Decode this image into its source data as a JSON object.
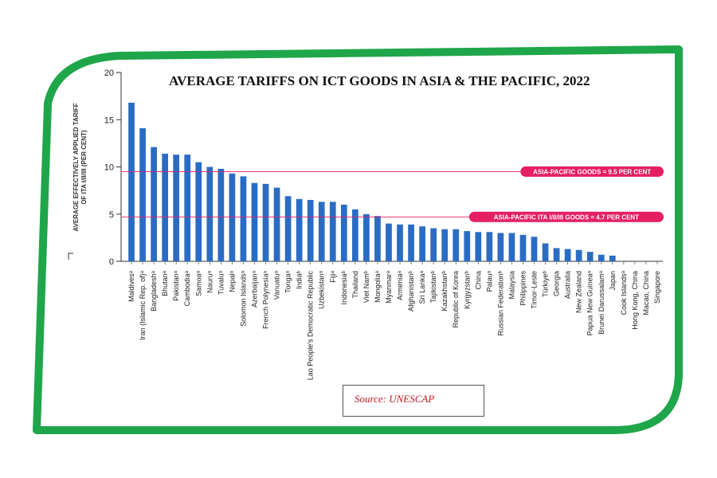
{
  "colors": {
    "frame": "#1fa64a",
    "bar": "#2a6cc4",
    "reference": "#e61e63",
    "axis": "#333333"
  },
  "chart_data": {
    "type": "bar",
    "title": "AVERAGE TARIFFS ON ICT GOODS IN ASIA & THE PACIFIC, 2022",
    "xlabel": "",
    "ylabel": "AVERAGE EFFECTIVELY APPLIED TARIFF OF ITA I/II/III (PER CENT)",
    "ylim": [
      0,
      20
    ],
    "yticks": [
      0,
      5,
      10,
      15,
      20
    ],
    "categories": [
      "Maldivesᵃ",
      "Iran (Islamic Rep. of)ᵃ",
      "Bangladeshᵃ",
      "Bhutanᵃ",
      "Pakistanᵃ",
      "Cambodiaᵃ",
      "Samoaᵃ",
      "Nauruᵃ",
      "Tuvaluᵃ",
      "Nepalᵃ",
      "Solomon Islandsᵃ",
      "Azerbaijanᵃ",
      "French Polynesiaᵃ",
      "Vanuatuᵃ",
      "Tongaᵃ",
      "Indiaᵇ",
      "Lao People's Democratic Republic",
      "Uzbekistanᵃ",
      "Fijiᵃ",
      "Indonesiaᵇ",
      "Thailand",
      "Viet Namᵇ",
      "Mongoliaᵃ",
      "Myanmarᵃ",
      "Armeniaᵃ",
      "Afghanistanᵇ",
      "Sri Lankaᵃ",
      "Tajikistanᵇ",
      "Kazakhstanᵇ",
      "Republic of Korea",
      "Kyrgyzstanᵇ",
      "China",
      "Palauᵃ",
      "Russian Federationᵇ",
      "Malaysia",
      "Philippines",
      "Timor-Leste",
      "Türkiyeᵇ",
      "Georgia",
      "Australia",
      "New Zealand",
      "Papua New Guineaᵃ",
      "Brunei Darussalamᵃ",
      "Japan",
      "Cook Islandsᵃ",
      "Hong Kong, China",
      "Macao, China",
      "Singapore"
    ],
    "values": [
      16.8,
      14.1,
      12.1,
      11.4,
      11.3,
      11.3,
      10.5,
      10.0,
      9.8,
      9.3,
      9.0,
      8.3,
      8.2,
      7.8,
      6.9,
      6.6,
      6.5,
      6.3,
      6.3,
      6.0,
      5.5,
      5.0,
      4.8,
      4.0,
      3.9,
      3.9,
      3.7,
      3.5,
      3.4,
      3.4,
      3.2,
      3.1,
      3.1,
      3.0,
      3.0,
      2.8,
      2.6,
      1.9,
      1.4,
      1.3,
      1.2,
      1.0,
      0.7,
      0.6,
      0,
      0,
      0,
      0
    ],
    "reference_lines": [
      {
        "label": "ASIA-PACIFIC GOODS = 9.5 PER CENT",
        "value": 9.5
      },
      {
        "label": "ASIA-PACIFIC ITA I/II/III GOODS = 4.7 PER CENT",
        "value": 4.7
      }
    ]
  },
  "source": "Source: UNESCAP"
}
